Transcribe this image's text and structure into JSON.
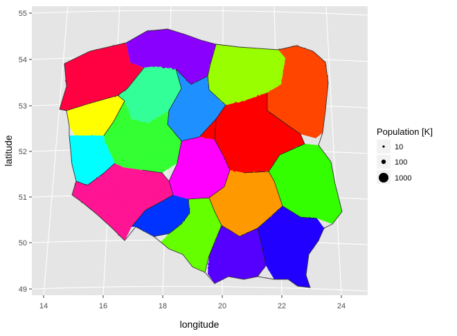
{
  "chart_data": {
    "type": "scatter",
    "title": "",
    "xlabel": "longitude",
    "ylabel": "latitude",
    "xlim": [
      13.6,
      24.7
    ],
    "ylim": [
      48.8,
      55.1
    ],
    "x_ticks": [
      "14",
      "16",
      "18",
      "20",
      "22",
      "24"
    ],
    "y_ticks": [
      "49",
      "50",
      "51",
      "52",
      "53",
      "54",
      "55"
    ],
    "grid": true,
    "background": "#e5e5e5",
    "legend": {
      "title": "Population [K]",
      "placement": "right",
      "entries": [
        {
          "label": "10",
          "value": 10
        },
        {
          "label": "100",
          "value": 100
        },
        {
          "label": "1000",
          "value": 1000
        }
      ]
    },
    "regions": [
      {
        "color": "#ff0040",
        "lon": 15.9,
        "lat": 53.7
      },
      {
        "color": "#8a00ff",
        "lon": 17.7,
        "lat": 54.3
      },
      {
        "color": "#99ff00",
        "lon": 20.7,
        "lat": 53.9
      },
      {
        "color": "#ff4500",
        "lon": 22.5,
        "lat": 53.5
      },
      {
        "color": "#ffff00",
        "lon": 15.3,
        "lat": 52.7
      },
      {
        "color": "#33ff99",
        "lon": 17.7,
        "lat": 53.3
      },
      {
        "color": "#1e90ff",
        "lon": 18.7,
        "lat": 53.0
      },
      {
        "color": "#33ff33",
        "lon": 17.1,
        "lat": 52.3
      },
      {
        "color": "#ff0000",
        "lon": 21.0,
        "lat": 52.4
      },
      {
        "color": "#00ffff",
        "lon": 15.3,
        "lat": 51.9
      },
      {
        "color": "#ff00ff",
        "lon": 19.4,
        "lat": 51.6
      },
      {
        "color": "#33ff00",
        "lon": 22.7,
        "lat": 51.3
      },
      {
        "color": "#ff1493",
        "lon": 16.3,
        "lat": 51.1
      },
      {
        "color": "#0033ff",
        "lon": 17.6,
        "lat": 50.6
      },
      {
        "color": "#ff9900",
        "lon": 20.6,
        "lat": 50.8
      },
      {
        "color": "#66ff00",
        "lon": 18.9,
        "lat": 50.2
      },
      {
        "color": "#5500ff",
        "lon": 20.3,
        "lat": 49.8
      },
      {
        "color": "#2200ff",
        "lon": 22.2,
        "lat": 49.9
      }
    ]
  }
}
